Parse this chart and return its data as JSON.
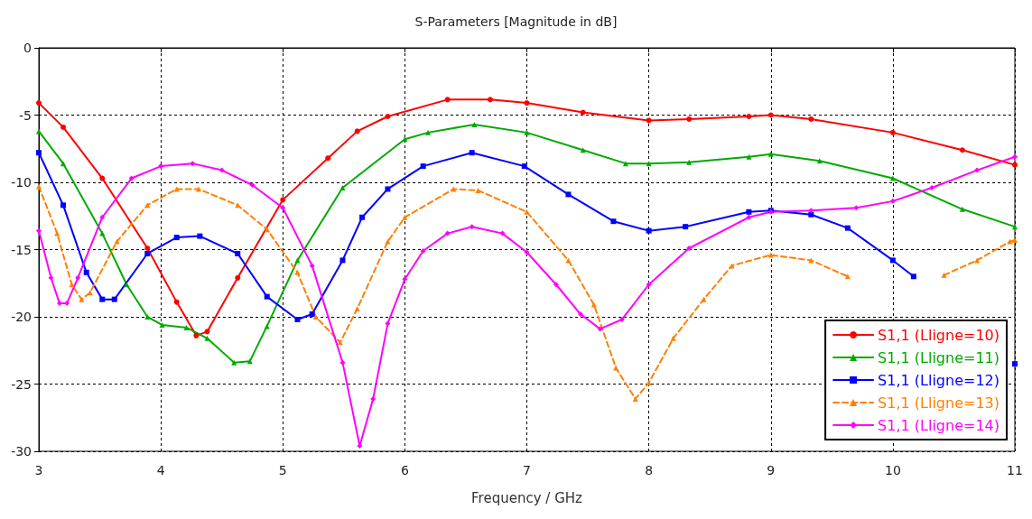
{
  "chart_data": {
    "type": "line",
    "title": "S-Parameters [Magnitude in dB]",
    "xlabel": "Frequency / GHz",
    "xlim": [
      3,
      11
    ],
    "xticks": [
      3,
      4,
      5,
      6,
      7,
      8,
      9,
      10,
      11
    ],
    "ylim": [
      -30,
      0
    ],
    "yticks": [
      -30,
      -25,
      -20,
      -15,
      -10,
      -5,
      0
    ],
    "grid": true,
    "legend": "bottom right",
    "series": [
      {
        "name": "S1,1 (Lligne=10)",
        "color": "#ff0000",
        "marker": "circle",
        "line_style": "solid",
        "x": [
          3,
          3.2,
          3.52,
          3.89,
          4.13,
          4.29,
          4.38,
          4.63,
          5,
          5.37,
          5.61,
          5.86,
          6.35,
          6.7,
          7,
          7.46,
          8,
          8.33,
          8.82,
          9,
          9.33,
          10,
          10.57,
          11
        ],
        "values": [
          -4.1,
          -5.9,
          -9.7,
          -14.9,
          -18.9,
          -21.4,
          -21.1,
          -17.1,
          -11.3,
          -8.2,
          -6.2,
          -5.1,
          -3.85,
          -3.85,
          -4.1,
          -4.8,
          -5.4,
          -5.3,
          -5.1,
          -5.0,
          -5.3,
          -6.3,
          -7.6,
          -8.7
        ]
      },
      {
        "name": "S1,1 (Lligne=11)",
        "color": "#00aa00",
        "marker": "triangle",
        "line_style": "solid",
        "x": [
          3,
          3.2,
          3.52,
          3.72,
          3.89,
          4.01,
          4.21,
          4.38,
          4.6,
          4.73,
          4.87,
          5.12,
          5.49,
          6,
          6.19,
          6.57,
          7,
          7.46,
          7.81,
          8,
          8.33,
          8.82,
          9,
          9.4,
          10,
          10.57,
          11
        ],
        "values": [
          -6.2,
          -8.6,
          -13.8,
          -17.6,
          -20,
          -20.6,
          -20.8,
          -21.6,
          -23.4,
          -23.3,
          -20.7,
          -15.8,
          -10.4,
          -6.8,
          -6.3,
          -5.7,
          -6.3,
          -7.6,
          -8.6,
          -8.6,
          -8.5,
          -8.1,
          -7.9,
          -8.4,
          -9.7,
          -12,
          -13.3
        ]
      },
      {
        "name": "S1,1 (Lligne=12)",
        "color": "#0000ff",
        "marker": "square",
        "line_style": "solid",
        "x": [
          3,
          3.2,
          3.39,
          3.52,
          3.62,
          3.89,
          4.13,
          4.32,
          4.63,
          4.87,
          5.12,
          5.24,
          5.49,
          5.65,
          5.86,
          6.15,
          6.55,
          6.98,
          7.34,
          7.71,
          8,
          8.3,
          8.82,
          9,
          9.33,
          9.63,
          10,
          10.17,
          10.5,
          11
        ],
        "values": [
          -7.8,
          -11.7,
          -16.7,
          -18.7,
          -18.7,
          -15.3,
          -14.1,
          -14,
          -15.3,
          -18.5,
          -20.2,
          -19.8,
          -15.8,
          -12.6,
          -10.5,
          -8.8,
          -7.8,
          -8.8,
          -10.9,
          -12.9,
          -13.6,
          -13.3,
          -12.2,
          -12.1,
          -12.4,
          -13.4,
          -15.8,
          -17,
          null,
          -23.5
        ]
      },
      {
        "name": "S1,1 (Lligne=13)",
        "color": "#ff8000",
        "marker": "triangle",
        "line_style": "dashed",
        "x": [
          3,
          3.15,
          3.27,
          3.35,
          3.42,
          3.64,
          3.89,
          4.13,
          4.31,
          4.63,
          4.87,
          5.12,
          5.27,
          5.47,
          5.61,
          5.86,
          6,
          6.4,
          6.6,
          7,
          7.34,
          7.55,
          7.73,
          7.89,
          8,
          8.2,
          8.45,
          8.68,
          9,
          9.33,
          9.63,
          10,
          10.42,
          10.69,
          10.96,
          11
        ],
        "values": [
          -10.3,
          -13.8,
          -17.6,
          -18.7,
          -18.2,
          -14.4,
          -11.7,
          -10.5,
          -10.5,
          -11.7,
          -13.5,
          -16.7,
          -20,
          -21.9,
          -19.4,
          -14.4,
          -12.6,
          -10.5,
          -10.6,
          -12.2,
          -15.8,
          -19.1,
          -23.8,
          -26.1,
          -24.9,
          -21.6,
          -18.7,
          -16.2,
          -15.4,
          -15.8,
          -17,
          null,
          -16.9,
          -15.8,
          -14.4,
          -14.3
        ]
      },
      {
        "name": "S1,1 (Lligne=14)",
        "color": "#ff00ff",
        "marker": "diamond",
        "line_style": "solid",
        "x": [
          3,
          3.1,
          3.17,
          3.23,
          3.32,
          3.52,
          3.76,
          4,
          4.26,
          4.5,
          4.75,
          5,
          5.24,
          5.49,
          5.63,
          5.74,
          5.86,
          6,
          6.15,
          6.35,
          6.55,
          6.8,
          7,
          7.24,
          7.44,
          7.6,
          7.78,
          8,
          8.33,
          8.82,
          9,
          9.33,
          9.7,
          10,
          10.32,
          10.69,
          11
        ],
        "values": [
          -13.6,
          -17.1,
          -19,
          -19,
          -17.1,
          -12.6,
          -9.7,
          -8.8,
          -8.6,
          -9.1,
          -10.2,
          -11.9,
          -16.2,
          -23.4,
          -29.6,
          -26.1,
          -20.5,
          -17.2,
          -15.1,
          -13.8,
          -13.3,
          -13.8,
          -15.2,
          -17.6,
          -19.8,
          -20.9,
          -20.2,
          -17.6,
          -14.9,
          -12.6,
          -12.2,
          -12.1,
          -11.9,
          -11.4,
          -10.4,
          -9.1,
          -8.1
        ]
      }
    ]
  }
}
